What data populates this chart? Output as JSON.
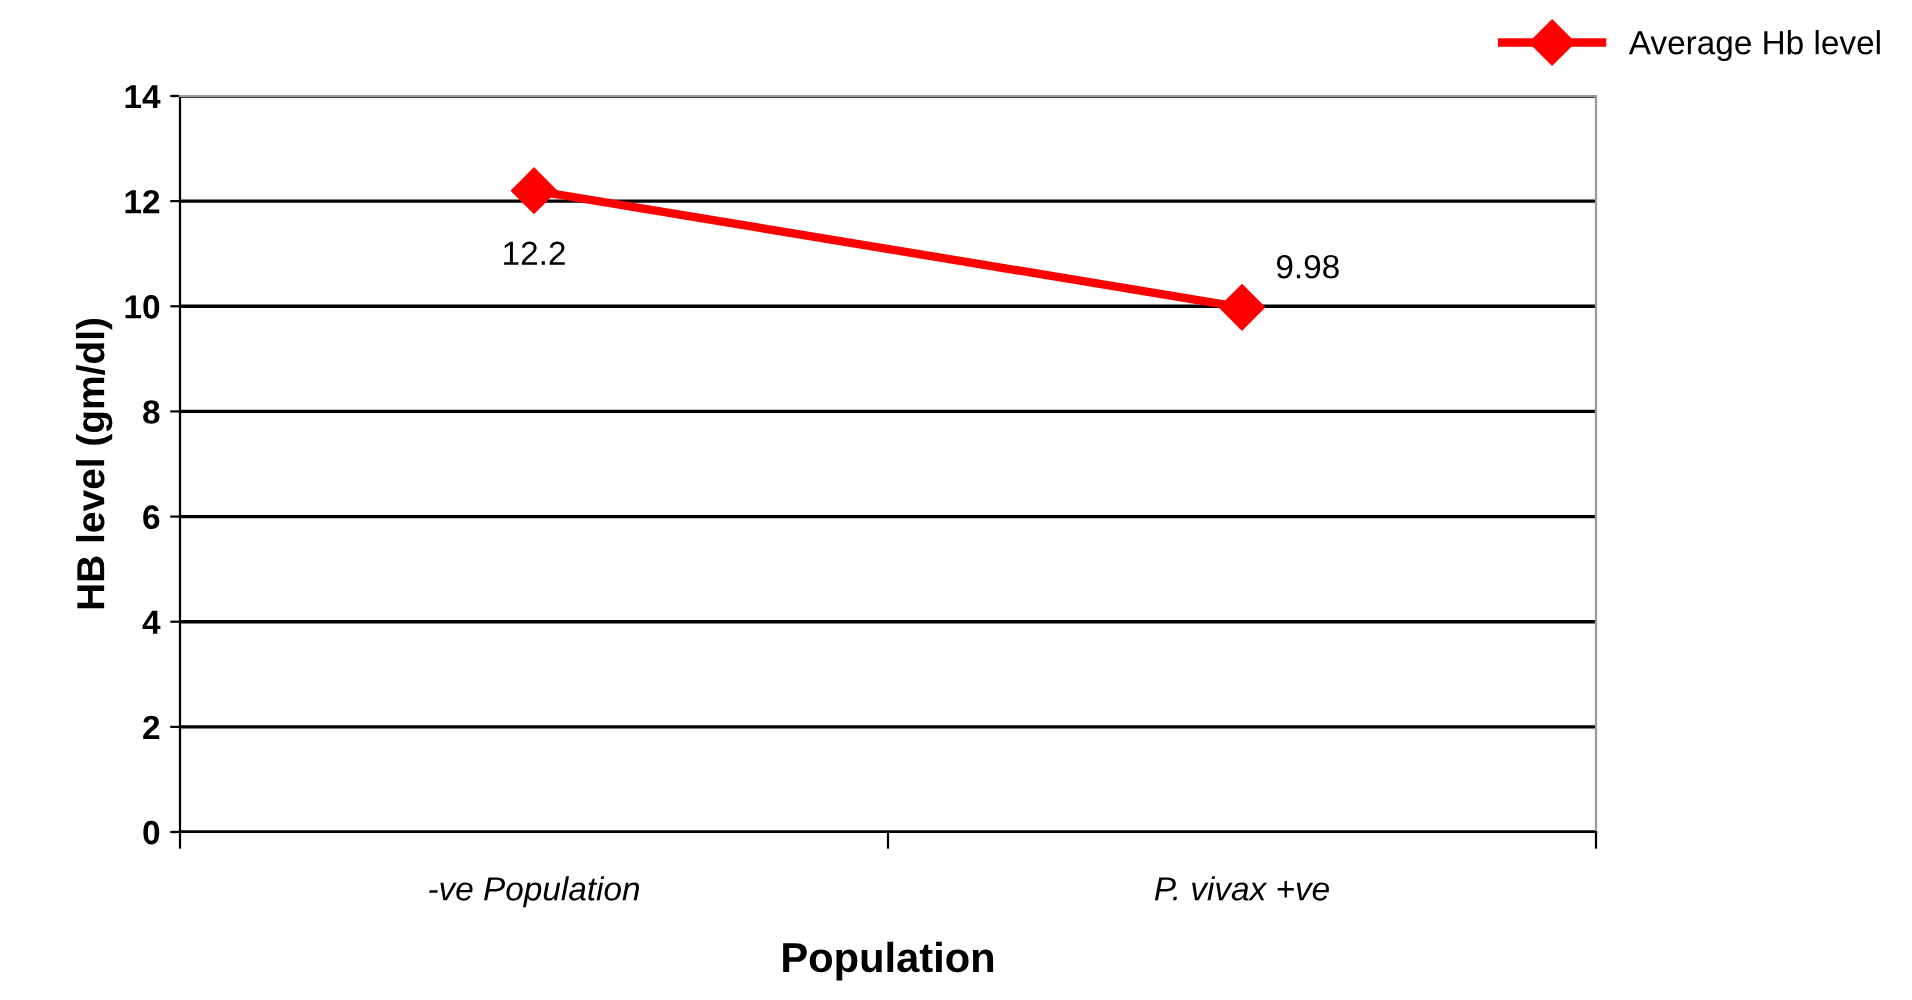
{
  "chart_data": {
    "type": "line",
    "xlabel": "Population",
    "ylabel": "HB level (gm/dl)",
    "categories": [
      "-ve Population",
      "P. vivax +ve"
    ],
    "series": [
      {
        "name": "Average Hb level",
        "color": "#ff0000",
        "values": [
          12.2,
          9.98
        ]
      }
    ],
    "ylim": [
      0,
      14
    ],
    "yticks": [
      0,
      2,
      4,
      6,
      8,
      10,
      12,
      14
    ],
    "grid": "y",
    "legend": "top right",
    "marker": "diamond",
    "line_style": "solid",
    "data_labels": true
  }
}
